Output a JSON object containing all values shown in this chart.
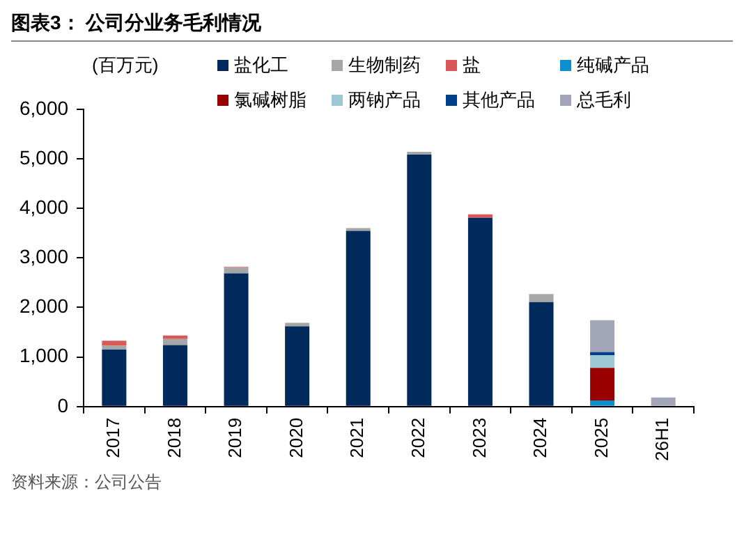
{
  "chart_data": {
    "type": "bar",
    "title": "图表3：  公司分业务毛利情况",
    "ylabel": "(百万元)",
    "annotations": [
      "资料来源：公司公告"
    ],
    "categories": [
      "2017",
      "2018",
      "2019",
      "2020",
      "2021",
      "2022",
      "2023",
      "2024",
      "2025",
      "26H1"
    ],
    "stacked": true,
    "legend": "top",
    "grid": false,
    "ylim": [
      0,
      6000
    ],
    "yticks": [
      {
        "value": 0,
        "label": "0"
      },
      {
        "value": 1000,
        "label": "1,000"
      },
      {
        "value": 2000,
        "label": "2,000"
      },
      {
        "value": 3000,
        "label": "3,000"
      },
      {
        "value": 4000,
        "label": "4,000"
      },
      {
        "value": 5000,
        "label": "5,000"
      },
      {
        "value": 6000,
        "label": "6,000"
      }
    ],
    "series": [
      {
        "name": "盐化工",
        "color": "#002a5c",
        "values": [
          1150,
          1240,
          2690,
          1620,
          3545,
          5085,
          3810,
          2110,
          0,
          0
        ]
      },
      {
        "name": "生物制药",
        "color": "#a6a6a6",
        "values": [
          80,
          125,
          110,
          70,
          55,
          55,
          0,
          160,
          0,
          0
        ]
      },
      {
        "name": "盐",
        "color": "#d9585a",
        "values": [
          100,
          70,
          20,
          0,
          0,
          0,
          70,
          0,
          0,
          0
        ]
      },
      {
        "name": "纯碱产品",
        "color": "#0e8fce",
        "values": [
          0,
          0,
          0,
          0,
          0,
          0,
          0,
          0,
          125,
          0
        ]
      },
      {
        "name": "氯碱树脂",
        "color": "#990000",
        "values": [
          0,
          0,
          0,
          0,
          0,
          0,
          0,
          0,
          655,
          0
        ]
      },
      {
        "name": "两钠产品",
        "color": "#9ec8d6",
        "values": [
          0,
          0,
          0,
          0,
          0,
          0,
          0,
          0,
          255,
          0
        ]
      },
      {
        "name": "其他产品",
        "color": "#003e8a",
        "values": [
          0,
          0,
          0,
          0,
          0,
          0,
          0,
          0,
          65,
          0
        ]
      },
      {
        "name": "总毛利",
        "color": "#a2a6b8",
        "values": [
          0,
          0,
          0,
          0,
          0,
          0,
          0,
          0,
          645,
          185
        ]
      }
    ]
  }
}
